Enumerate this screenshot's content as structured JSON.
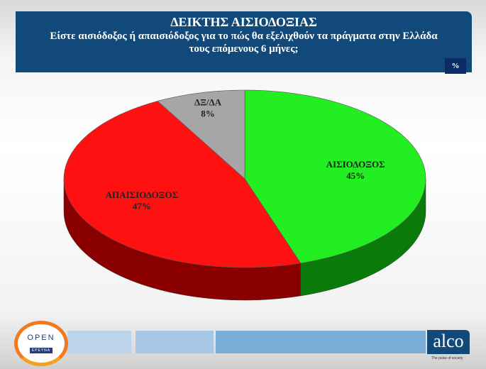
{
  "header": {
    "title": "ΔΕΙΚΤΗΣ ΑΙΣΙΟΔΟΞΙΑΣ",
    "subtitle_line1": "Είστε αισιόδοξος ή απαισιόδοξος  για το πώς θα εξελιχθούν τα πράγματα στην Ελλάδα",
    "subtitle_line2": "τους επόμενους 6 μήνες;"
  },
  "unit_badge": "%",
  "chart_data": {
    "type": "pie",
    "style": "3d",
    "title": "ΔΕΙΚΤΗΣ ΑΙΣΙΟΔΟΞΙΑΣ",
    "slices": [
      {
        "label": "ΑΙΣΙΟΔΟΞΟΣ",
        "value": 45,
        "display": "45%",
        "color": "#22ee22",
        "side_color": "#0a7a0a"
      },
      {
        "label": "ΑΠΑΙΣΙΟΔΟΞΟΣ",
        "value": 47,
        "display": "47%",
        "color": "#ff1111",
        "side_color": "#8a0000"
      },
      {
        "label": "ΔΞ/ΔΑ",
        "value": 8,
        "display": "8%",
        "color": "#a6a6a6",
        "side_color": "#666666"
      }
    ]
  },
  "footer": {
    "left_logo": "OPEN ΕΡΕΥΝΑ",
    "right_logo": "alco",
    "right_tagline": "The pulse of society",
    "bar_colors": [
      "#bcd4ea",
      "#a6c7e5",
      "#7aaed8"
    ]
  }
}
